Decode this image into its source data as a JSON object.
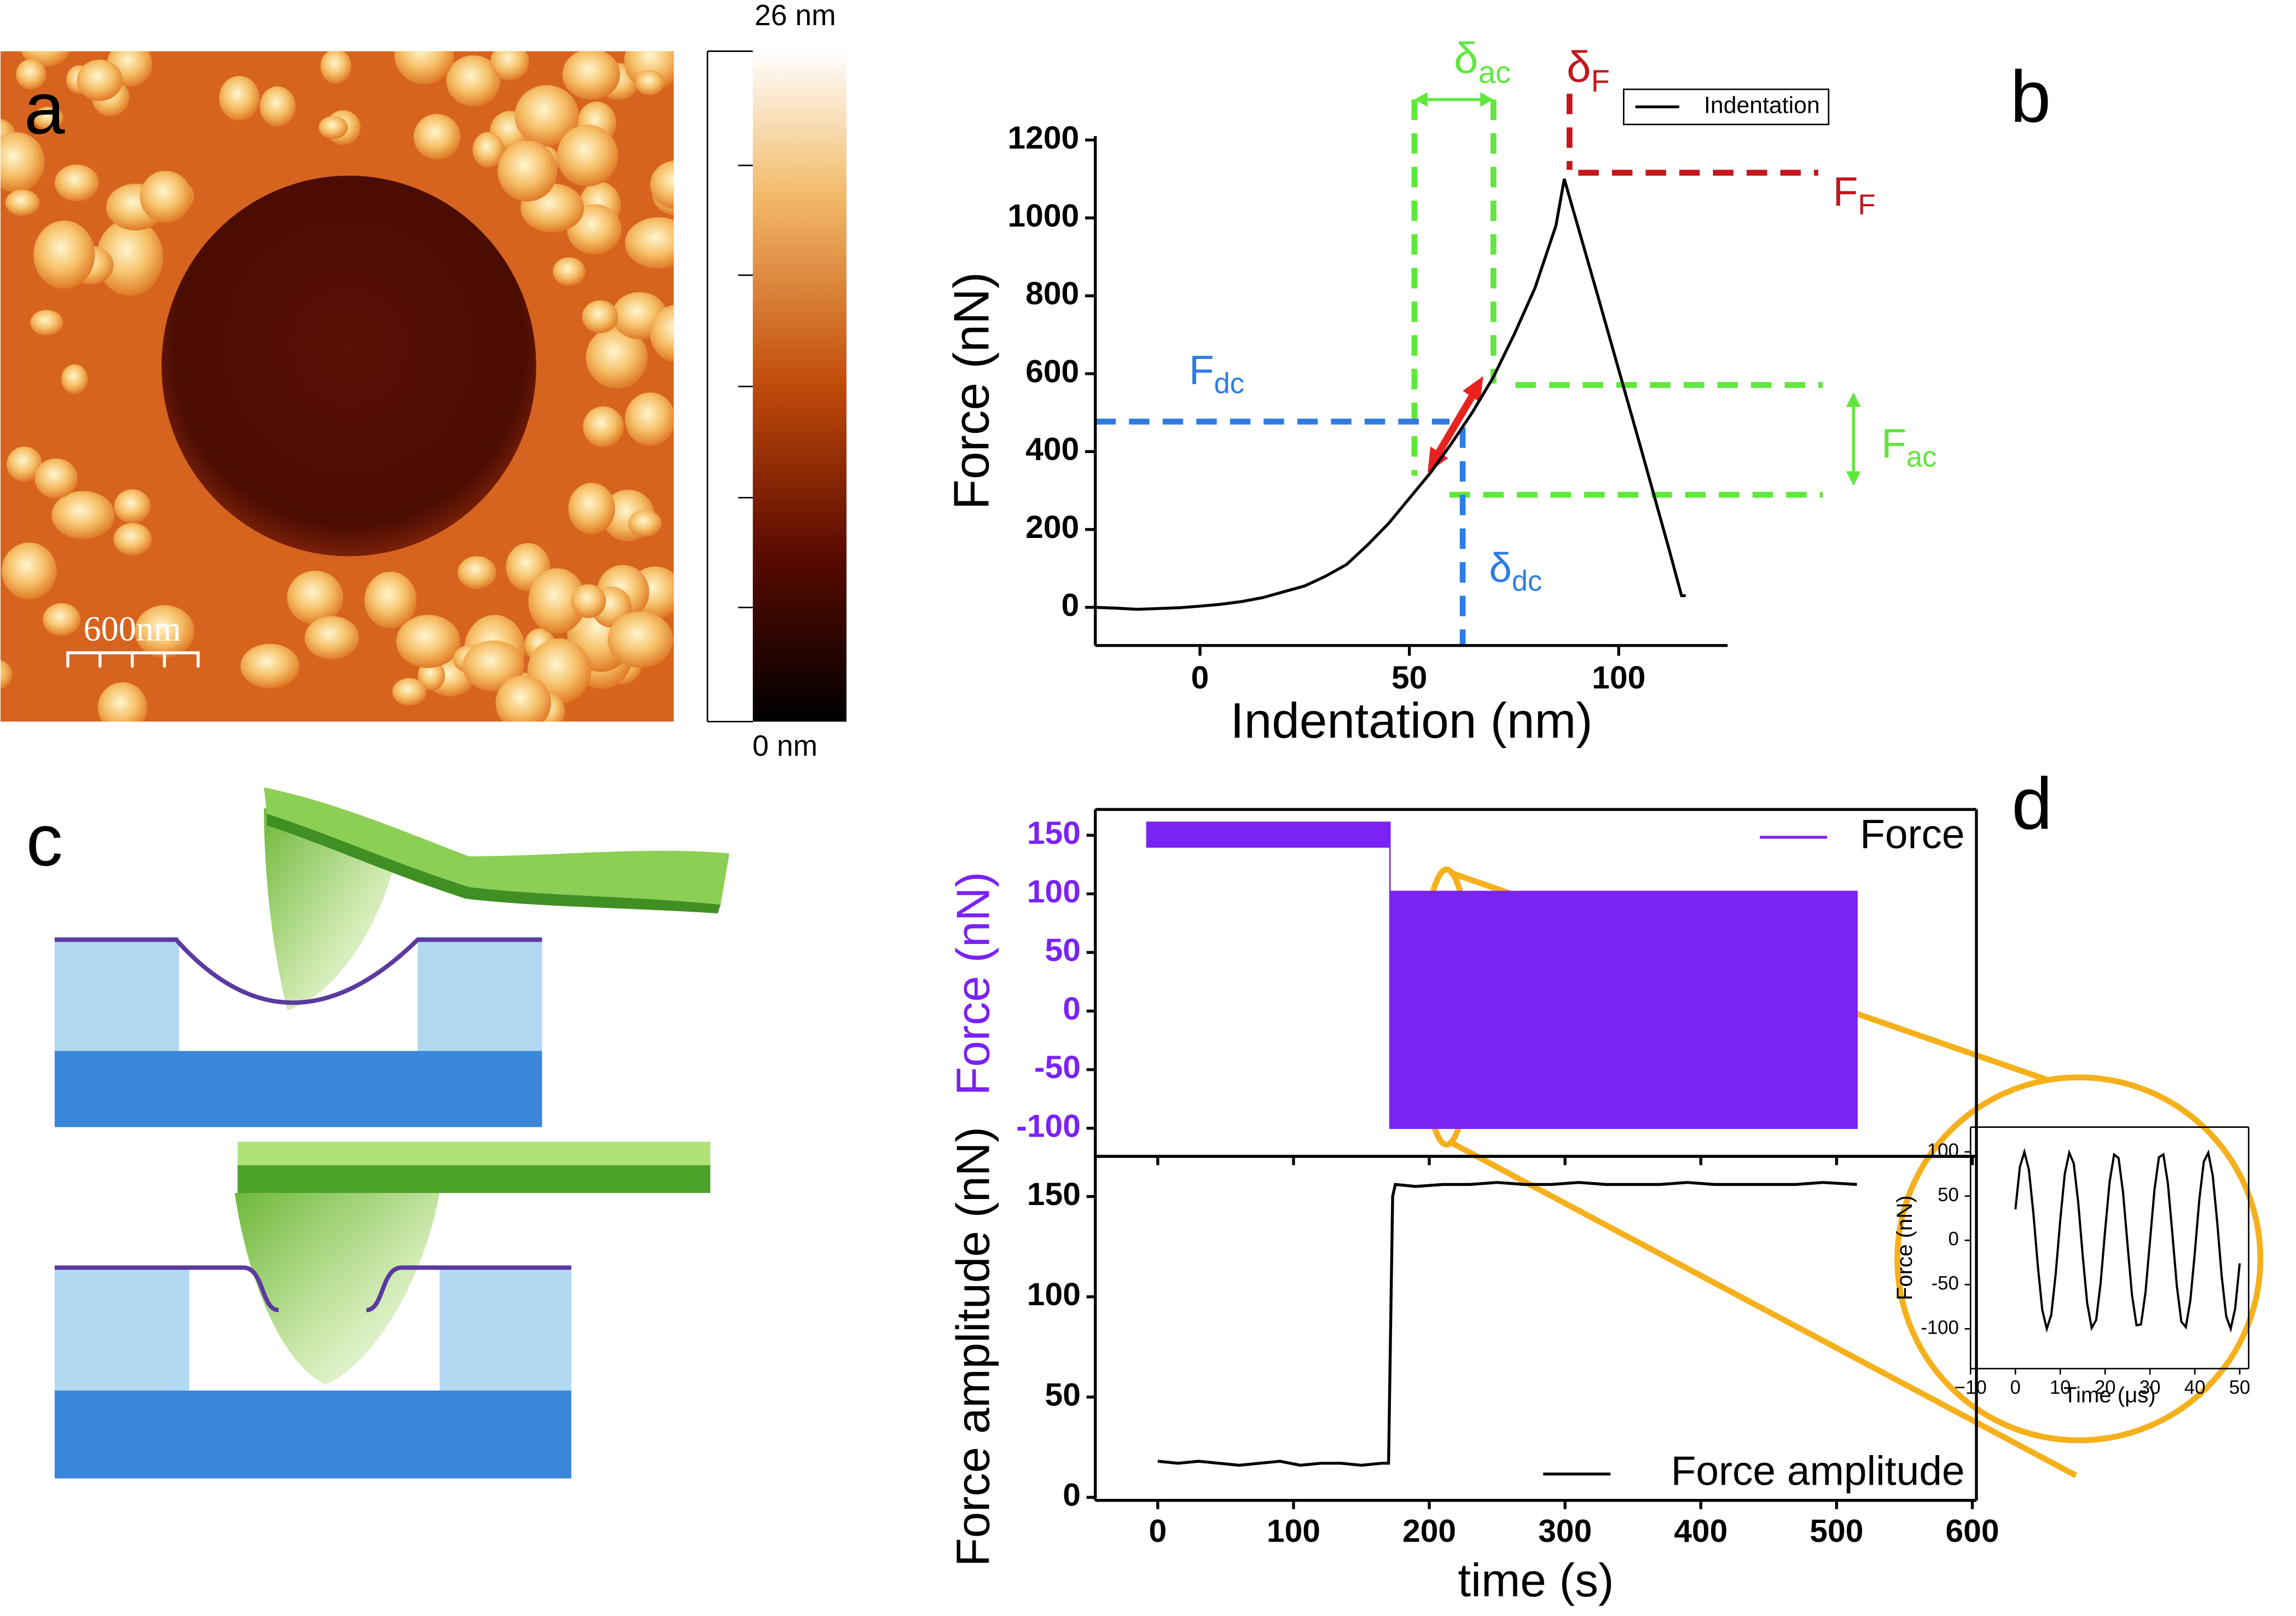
{
  "panel_labels": [
    "a",
    "b",
    "c",
    "d"
  ],
  "afm_image": {
    "colorbar_max": "26 nm",
    "colorbar_min": "0 nm",
    "scale_bar": "600nm"
  },
  "chart_data": [
    {
      "type": "line",
      "x_label": "Indentation (nm)",
      "y_label": "Force (nN)",
      "x": [
        -25,
        -20,
        -15,
        -10,
        -5,
        0,
        5,
        10,
        15,
        20,
        25,
        30,
        35,
        40,
        45,
        50,
        55,
        60,
        65,
        70,
        75,
        80,
        85,
        87,
        95,
        105,
        112,
        115,
        116
      ],
      "series": [
        {
          "name": "Indentation",
          "color": "#000000",
          "values": [
            0,
            -2,
            -5,
            -3,
            -1,
            3,
            8,
            15,
            25,
            40,
            55,
            80,
            110,
            160,
            215,
            280,
            345,
            420,
            500,
            590,
            700,
            820,
            980,
            1100,
            800,
            420,
            150,
            30,
            30
          ]
        }
      ],
      "xlim": [
        -25,
        126
      ],
      "ylim": [
        -98,
        1210
      ],
      "xticks": [
        0,
        50,
        100
      ],
      "yticks": [
        0,
        200,
        400,
        600,
        800,
        1000,
        1200
      ],
      "legend": "top right",
      "annotations": [
        {
          "symbol": "δ",
          "subscript": "ac",
          "color": "#5fe83c"
        },
        {
          "symbol": "δ",
          "subscript": "F",
          "color": "#c4161c"
        },
        {
          "symbol": "F",
          "subscript": "F",
          "color": "#c4161c"
        },
        {
          "symbol": "F",
          "subscript": "dc",
          "color": "#2f7de1"
        },
        {
          "symbol": "F",
          "subscript": "ac",
          "color": "#5fe83c"
        },
        {
          "symbol": "δ",
          "subscript": "dc",
          "color": "#2f7de1"
        }
      ]
    },
    {
      "type": "area",
      "y_label": "Force (nN)",
      "x": [
        -8,
        171,
        171,
        515
      ],
      "series": [
        {
          "name": "Force",
          "color": "#7b22f5",
          "values": [
            161,
            161,
            102,
            102
          ],
          "lower": [
            140,
            140,
            -100,
            -100
          ]
        }
      ],
      "xlim": [
        -46,
        603
      ],
      "ylim": [
        -124,
        172
      ],
      "xticks": [
        0,
        100,
        200,
        300,
        400,
        500,
        600
      ],
      "yticks": [
        -100,
        -50,
        0,
        50,
        100,
        150
      ],
      "legend": "top right"
    },
    {
      "type": "line",
      "x_label": "time (s)",
      "y_label": "Force amplitude (nN)",
      "x": [
        0,
        15,
        30,
        45,
        60,
        75,
        90,
        105,
        120,
        135,
        150,
        165,
        170,
        173,
        175,
        190,
        210,
        230,
        250,
        270,
        290,
        310,
        330,
        350,
        370,
        390,
        410,
        430,
        450,
        470,
        490,
        515
      ],
      "series": [
        {
          "name": "Force amplitude",
          "color": "#000000",
          "values": [
            18,
            17,
            18,
            17,
            16,
            17,
            18,
            16,
            17,
            17,
            16,
            17,
            17,
            150,
            156,
            155,
            156,
            156,
            157,
            156,
            156,
            157,
            156,
            156,
            156,
            157,
            156,
            156,
            156,
            156,
            157,
            156
          ]
        }
      ],
      "xlim": [
        -46,
        603
      ],
      "ylim": [
        -1.5,
        170
      ],
      "xticks": [
        0,
        100,
        200,
        300,
        400,
        500,
        600
      ],
      "yticks": [
        0,
        50,
        100,
        150
      ],
      "legend": "bottom right"
    },
    {
      "type": "line",
      "x_label": "Time (μs)",
      "y_label": "Force (nN)",
      "x": [
        0,
        1,
        2,
        3,
        4,
        5,
        6,
        7,
        8,
        9,
        10,
        11,
        12,
        13,
        14,
        15,
        16,
        17,
        18,
        19,
        20,
        21,
        22,
        23,
        24,
        25,
        26,
        27,
        28,
        29,
        30,
        31,
        32,
        33,
        34,
        35,
        36,
        37,
        38,
        39,
        40,
        41,
        42,
        43,
        44,
        45,
        46,
        47,
        48,
        49,
        50
      ],
      "series": [
        {
          "color": "#000000",
          "values": [
            35,
            83,
            100,
            80,
            31,
            -29,
            -79,
            -100,
            -84,
            -37,
            23,
            75,
            99,
            87,
            43,
            -17,
            -71,
            -99,
            -90,
            -48,
            11,
            66,
            97,
            93,
            54,
            -5,
            -62,
            -96,
            -95,
            -59,
            -1,
            57,
            94,
            97,
            64,
            7,
            -52,
            -92,
            -98,
            -68,
            -14,
            46,
            89,
            99,
            73,
            20,
            -41,
            -86,
            -100,
            -77,
            -26
          ]
        }
      ],
      "xlim": [
        -10,
        52
      ],
      "ylim": [
        -145,
        128
      ],
      "xticks": [
        {
          "value": -10,
          "label": "−10"
        },
        0,
        10,
        20,
        30,
        40,
        50
      ],
      "yticks": [
        -100,
        -50,
        0,
        50,
        100
      ]
    }
  ]
}
